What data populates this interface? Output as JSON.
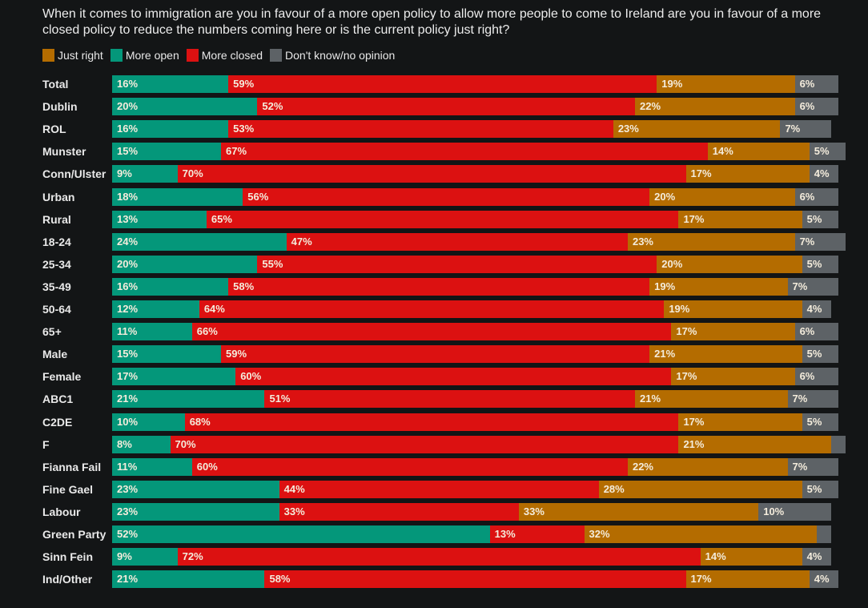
{
  "title": "When it comes to immigration are you in favour of a more open policy to allow more people to come to Ireland are you in favour of a more closed policy to reduce the numbers coming here or is the current policy just right?",
  "colors": {
    "just_right": "#b46c00",
    "more_open": "#04977a",
    "more_closed": "#dc1111",
    "dont_know": "#5d6266"
  },
  "chart_data": {
    "type": "bar",
    "orientation": "horizontal",
    "stacked": true,
    "title": "When it comes to immigration are you in favour of a more open policy to allow more people to come to Ireland are you in favour of a more closed policy to reduce the numbers coming here or is the current policy just right?",
    "xlabel": "",
    "ylabel": "",
    "xlim": [
      0,
      100
    ],
    "unit": "%",
    "grid": false,
    "legend": {
      "placement": "top-left",
      "entries": [
        {
          "key": "just_right",
          "label": "Just right"
        },
        {
          "key": "more_open",
          "label": "More open"
        },
        {
          "key": "more_closed",
          "label": "More closed"
        },
        {
          "key": "dont_know",
          "label": "Don't know/no opinion"
        }
      ]
    },
    "stack_order": [
      "more_open",
      "more_closed",
      "just_right",
      "dont_know"
    ],
    "categories": [
      "Total",
      "Dublin",
      "ROL",
      "Munster",
      "Conn/Ulster",
      "Urban",
      "Rural",
      "18-24",
      "25-34",
      "35-49",
      "50-64",
      "65+",
      "Male",
      "Female",
      "ABC1",
      "C2DE",
      "F",
      "Fianna Fail",
      "Fine Gael",
      "Labour",
      "Green Party",
      "Sinn Fein",
      "Ind/Other"
    ],
    "series": [
      {
        "name": "More open",
        "key": "more_open",
        "values": [
          16,
          20,
          16,
          15,
          9,
          18,
          13,
          24,
          20,
          16,
          12,
          11,
          15,
          17,
          21,
          10,
          8,
          11,
          23,
          23,
          52,
          9,
          21
        ]
      },
      {
        "name": "More closed",
        "key": "more_closed",
        "values": [
          59,
          52,
          53,
          67,
          70,
          56,
          65,
          47,
          55,
          58,
          64,
          66,
          59,
          60,
          51,
          68,
          70,
          60,
          44,
          33,
          13,
          72,
          58
        ]
      },
      {
        "name": "Just right",
        "key": "just_right",
        "values": [
          19,
          22,
          23,
          14,
          17,
          20,
          17,
          23,
          20,
          19,
          19,
          17,
          21,
          17,
          21,
          17,
          21,
          22,
          28,
          33,
          32,
          14,
          17
        ]
      },
      {
        "name": "Don't know/no opinion",
        "key": "dont_know",
        "values": [
          6,
          6,
          7,
          5,
          4,
          6,
          5,
          7,
          5,
          7,
          4,
          6,
          5,
          6,
          7,
          5,
          2,
          7,
          5,
          10,
          2,
          4,
          4
        ]
      }
    ],
    "data_labels": {
      "more_open": [
        "16%",
        "20%",
        "16%",
        "15%",
        "9%",
        "18%",
        "13%",
        "24%",
        "20%",
        "16%",
        "12%",
        "11%",
        "15%",
        "17%",
        "21%",
        "10%",
        "8%",
        "11%",
        "23%",
        "23%",
        "52%",
        "9%",
        "21%"
      ],
      "more_closed": [
        "59%",
        "52%",
        "53%",
        "67%",
        "70%",
        "56%",
        "65%",
        "47%",
        "55%",
        "58%",
        "64%",
        "66%",
        "59%",
        "60%",
        "51%",
        "68%",
        "70%",
        "60%",
        "44%",
        "33%",
        "13%",
        "72%",
        "58%"
      ],
      "just_right": [
        "19%",
        "22%",
        "23%",
        "14%",
        "17%",
        "20%",
        "17%",
        "23%",
        "20%",
        "19%",
        "19%",
        "17%",
        "21%",
        "17%",
        "21%",
        "17%",
        "21%",
        "22%",
        "28%",
        "33%",
        "32%",
        "14%",
        "17%"
      ],
      "dont_know": [
        "6%",
        "6%",
        "7%",
        "5%",
        "4%",
        "6%",
        "5%",
        "7%",
        "5%",
        "7%",
        "4%",
        "6%",
        "5%",
        "6%",
        "7%",
        "5%",
        "",
        "7%",
        "5%",
        "10%",
        "",
        "4%",
        "4%"
      ]
    }
  }
}
